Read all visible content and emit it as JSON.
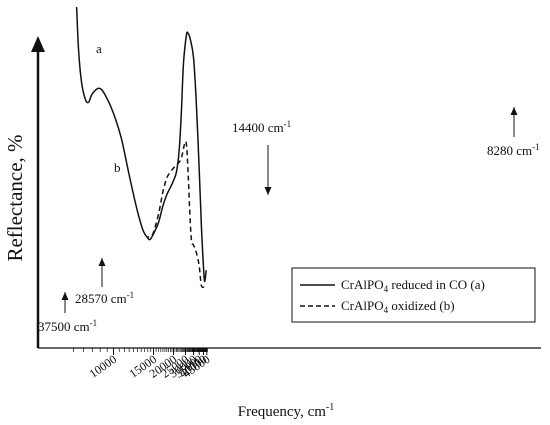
{
  "chart_data": {
    "type": "line",
    "title": "",
    "xlabel": "Frequency, cm",
    "xlabel_sup": "-1",
    "ylabel": "Reflectance, %",
    "x_axis": {
      "scale": "reciprocal",
      "tick_values": [
        45000,
        40000,
        35000,
        30000,
        25000,
        20000,
        15000,
        10000
      ],
      "tick_labels": [
        "45000",
        "40000",
        "35000",
        "30000",
        "25000",
        "20000",
        "15000",
        "10000"
      ]
    },
    "y_axis": {
      "ticks": "none",
      "arrow": true
    },
    "grid": false,
    "legend_position": "bottom-right",
    "series": [
      {
        "name": "CrAlPO4 reduced in CO (a)",
        "label": "a",
        "style": "solid",
        "points": [
          [
            44000,
            0.06
          ],
          [
            41500,
            0.02
          ],
          [
            40000,
            0.07
          ],
          [
            37500,
            0.21
          ],
          [
            35000,
            0.42
          ],
          [
            32000,
            0.68
          ],
          [
            30000,
            0.82
          ],
          [
            28000,
            0.88
          ],
          [
            26500,
            0.905
          ],
          [
            25500,
            0.9
          ],
          [
            24000,
            0.8
          ],
          [
            23000,
            0.62
          ],
          [
            22000,
            0.48
          ],
          [
            21000,
            0.41
          ],
          [
            20000,
            0.38
          ],
          [
            19000,
            0.355
          ],
          [
            18000,
            0.33
          ],
          [
            17000,
            0.29
          ],
          [
            16000,
            0.23
          ],
          [
            15000,
            0.19
          ],
          [
            14400,
            0.17
          ],
          [
            14000,
            0.175
          ],
          [
            13300,
            0.2
          ],
          [
            12500,
            0.27
          ],
          [
            11500,
            0.4
          ],
          [
            10700,
            0.53
          ],
          [
            10000,
            0.62
          ],
          [
            9300,
            0.69
          ],
          [
            8900,
            0.71
          ],
          [
            8500,
            0.69
          ],
          [
            8280,
            0.66
          ],
          [
            8100,
            0.67
          ],
          [
            7900,
            0.73
          ],
          [
            7750,
            0.84
          ],
          [
            7650,
            1.0
          ]
        ]
      },
      {
        "name": "CrAlPO4 oxidized (b)",
        "label": "b",
        "style": "dashed",
        "points": [
          [
            41000,
            0.0
          ],
          [
            38500,
            0.0
          ],
          [
            37000,
            0.01
          ],
          [
            35000,
            0.075
          ],
          [
            32500,
            0.12
          ],
          [
            30000,
            0.15
          ],
          [
            28570,
            0.165
          ],
          [
            27500,
            0.26
          ],
          [
            26500,
            0.4
          ],
          [
            25500,
            0.51
          ],
          [
            24500,
            0.51
          ],
          [
            23000,
            0.46
          ],
          [
            21500,
            0.44
          ],
          [
            20000,
            0.425
          ],
          [
            19000,
            0.41
          ],
          [
            18000,
            0.39
          ],
          [
            17000,
            0.34
          ],
          [
            16000,
            0.26
          ],
          [
            15000,
            0.195
          ],
          [
            14400,
            0.18
          ],
          [
            14000,
            0.18
          ]
        ]
      }
    ],
    "annotations": [
      {
        "text": "14400 cm",
        "sup": "-1",
        "x": 14400,
        "arrow": "down"
      },
      {
        "text": "8280 cm",
        "sup": "-1",
        "x": 8280,
        "arrow": "up"
      },
      {
        "text": "28570 cm",
        "sup": "-1",
        "x": 28570,
        "arrow": "up"
      },
      {
        "text": "37500 cm",
        "sup": "-1",
        "x": 37500,
        "arrow": "up"
      }
    ],
    "legend": [
      {
        "pre": "CrAlPO",
        "sub": "4",
        "post": " reduced in CO (a)",
        "style": "solid"
      },
      {
        "pre": "CrAlPO",
        "sub": "4",
        "post": " oxidized (b)",
        "style": "dashed"
      }
    ]
  }
}
